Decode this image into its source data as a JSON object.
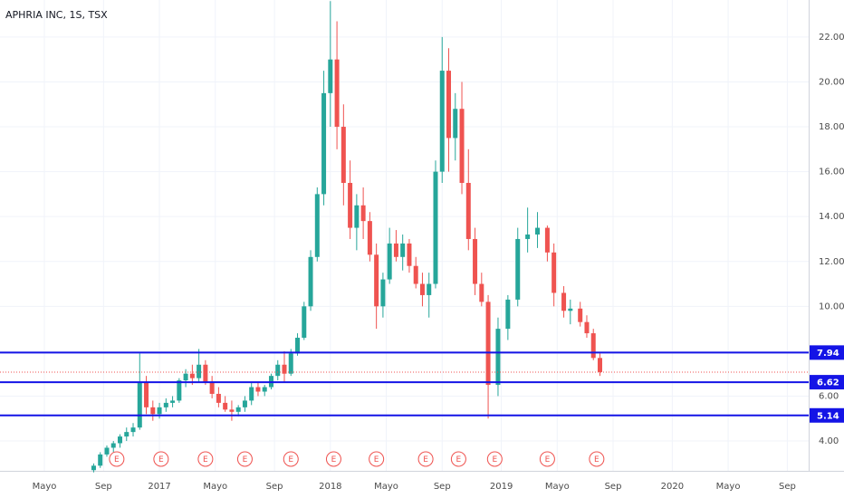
{
  "chart_data": {
    "type": "candlestick",
    "title": "APHRIA INC, 1S, TSX",
    "x": [
      -20,
      -18,
      -16,
      -14,
      -12,
      -10,
      -8,
      -6,
      -4,
      -2,
      0,
      2,
      4,
      6,
      8,
      10,
      12,
      14,
      16,
      18,
      20,
      22,
      24,
      26,
      28,
      30,
      32,
      34,
      36,
      38,
      40,
      42,
      44,
      46,
      48,
      50,
      52,
      54,
      56,
      58,
      60,
      62,
      64,
      66,
      68,
      70,
      72,
      74,
      76,
      78,
      80,
      82,
      84,
      86,
      88,
      90,
      92,
      94,
      96,
      98,
      100,
      103,
      106,
      109,
      112,
      115,
      118,
      120,
      123,
      125,
      128,
      130,
      132,
      134
    ],
    "open": [
      2.7,
      2.9,
      3.4,
      3.7,
      3.9,
      4.2,
      4.4,
      4.6,
      6.6,
      5.5,
      5.2,
      5.5,
      5.7,
      5.8,
      6.7,
      7.0,
      6.8,
      7.4,
      6.6,
      6.1,
      5.7,
      5.4,
      5.3,
      5.5,
      5.8,
      6.4,
      6.2,
      6.4,
      6.9,
      7.4,
      7.0,
      7.9,
      8.6,
      10.0,
      12.2,
      15.0,
      19.5,
      21.0,
      18.0,
      15.5,
      13.5,
      14.5,
      13.8,
      12.3,
      10.0,
      11.2,
      12.8,
      12.2,
      12.8,
      11.8,
      11.0,
      10.5,
      11.0,
      16.0,
      20.5,
      17.5,
      18.8,
      15.5,
      13.0,
      11.0,
      10.2,
      6.5,
      9.0,
      10.3,
      13.0,
      13.2,
      13.5,
      12.4,
      10.6,
      9.8,
      9.9,
      9.3,
      8.8,
      7.7
    ],
    "high": [
      3.0,
      3.5,
      3.8,
      4.0,
      4.3,
      4.6,
      4.8,
      7.9,
      6.9,
      5.8,
      5.7,
      5.9,
      6.0,
      6.8,
      7.2,
      7.4,
      8.1,
      7.6,
      6.9,
      6.4,
      6.0,
      5.8,
      5.6,
      6.0,
      6.6,
      6.6,
      6.5,
      7.0,
      7.6,
      8.0,
      8.1,
      8.8,
      10.2,
      12.5,
      15.3,
      20.5,
      23.6,
      22.7,
      19.0,
      16.5,
      15.0,
      15.3,
      14.2,
      12.8,
      11.5,
      13.5,
      13.4,
      13.2,
      13.0,
      12.2,
      11.5,
      11.5,
      16.5,
      22.0,
      21.5,
      19.5,
      20.0,
      17.0,
      13.5,
      11.5,
      10.5,
      9.5,
      10.5,
      13.5,
      14.4,
      14.2,
      13.6,
      12.8,
      10.9,
      10.3,
      10.2,
      9.6,
      9.0,
      7.9
    ],
    "low": [
      2.6,
      2.8,
      3.3,
      3.5,
      3.7,
      4.0,
      4.2,
      4.5,
      5.2,
      4.9,
      5.0,
      5.3,
      5.5,
      5.7,
      6.4,
      6.5,
      6.6,
      6.5,
      5.9,
      5.5,
      5.3,
      4.9,
      5.1,
      5.3,
      5.6,
      6.0,
      6.0,
      6.3,
      6.7,
      6.6,
      6.9,
      7.8,
      8.5,
      9.8,
      12.0,
      14.5,
      18.0,
      17.0,
      14.5,
      13.0,
      12.5,
      13.0,
      12.0,
      9.0,
      9.5,
      11.0,
      12.0,
      11.6,
      11.5,
      10.8,
      10.0,
      9.5,
      10.8,
      15.5,
      16.0,
      16.5,
      15.0,
      12.5,
      10.5,
      10.0,
      5.0,
      6.0,
      8.5,
      10.0,
      12.4,
      12.6,
      12.0,
      10.0,
      9.5,
      9.2,
      9.1,
      8.6,
      7.6,
      6.9
    ],
    "close": [
      2.9,
      3.4,
      3.7,
      3.9,
      4.2,
      4.4,
      4.6,
      6.6,
      5.5,
      5.2,
      5.5,
      5.7,
      5.8,
      6.7,
      7.0,
      6.8,
      7.4,
      6.6,
      6.1,
      5.7,
      5.4,
      5.3,
      5.5,
      5.8,
      6.4,
      6.2,
      6.4,
      6.9,
      7.4,
      7.0,
      7.9,
      8.6,
      10.0,
      12.2,
      15.0,
      19.5,
      21.0,
      18.0,
      15.5,
      13.5,
      14.5,
      13.8,
      12.3,
      10.0,
      11.2,
      12.8,
      12.2,
      12.8,
      11.8,
      11.0,
      10.5,
      11.0,
      16.0,
      20.5,
      17.5,
      18.8,
      15.5,
      13.0,
      11.0,
      10.2,
      6.5,
      9.0,
      10.3,
      13.0,
      13.2,
      13.5,
      12.4,
      10.6,
      9.8,
      9.9,
      9.3,
      8.8,
      7.7,
      7.07
    ],
    "up_color": "#26a69a",
    "down_color": "#ef5350",
    "xlim": [
      -48.5,
      197.5
    ],
    "ylim": [
      2.67,
      23.65
    ],
    "grid": true,
    "yticks": [
      {
        "value": 4,
        "label": "4.00"
      },
      {
        "value": 6,
        "label": "6.00"
      },
      {
        "value": 8,
        "label": "8.00"
      },
      {
        "value": 10,
        "label": "10.00"
      },
      {
        "value": 12,
        "label": "12.00"
      },
      {
        "value": 14,
        "label": "14.00"
      },
      {
        "value": 16,
        "label": "16.00"
      },
      {
        "value": 18,
        "label": "18.00"
      },
      {
        "value": 20,
        "label": "20.00"
      },
      {
        "value": 22,
        "label": "22.00"
      }
    ],
    "xticks": [
      {
        "value": -35,
        "label": "Mayo"
      },
      {
        "value": -17,
        "label": "Sep"
      },
      {
        "value": 0,
        "label": "2017"
      },
      {
        "value": 17,
        "label": "Mayo"
      },
      {
        "value": 35,
        "label": "Sep"
      },
      {
        "value": 52,
        "label": "2018"
      },
      {
        "value": 69,
        "label": "Mayo"
      },
      {
        "value": 86,
        "label": "Sep"
      },
      {
        "value": 104,
        "label": "2019"
      },
      {
        "value": 121,
        "label": "Mayo"
      },
      {
        "value": 138,
        "label": "Sep"
      },
      {
        "value": 156,
        "label": "2020"
      },
      {
        "value": 173,
        "label": "Mayo"
      },
      {
        "value": 191,
        "label": "Sep"
      }
    ],
    "levels": {
      "values": [
        7.94,
        6.62,
        5.14
      ],
      "color": "#1414e6"
    },
    "last_price": {
      "value": 7.07,
      "color": "#ef5350"
    },
    "events": {
      "x": [
        -13,
        0.5,
        14,
        26,
        40,
        53,
        66,
        81,
        91,
        102,
        118,
        133
      ],
      "label": "E",
      "color": "#ef5350"
    }
  }
}
